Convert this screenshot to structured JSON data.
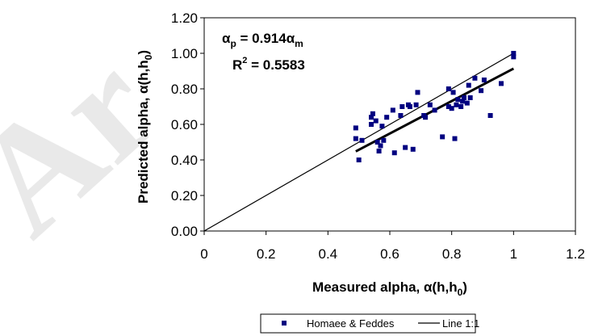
{
  "chart_data": {
    "type": "scatter",
    "xlabel": "Measured alpha, α(h,h",
    "xlabel_sub": "0",
    "xlabel_close": ")",
    "ylabel": "Predicted alpha, α(h,h",
    "ylabel_sub": "0",
    "ylabel_close": ")",
    "xlim": [
      0,
      1.2
    ],
    "ylim": [
      0,
      1.2
    ],
    "x_ticks": [
      0,
      0.2,
      0.4,
      0.6,
      0.8,
      1,
      1.2
    ],
    "x_tick_labels": [
      "0",
      "0.2",
      "0.4",
      "0.6",
      "0.8",
      "1",
      "1.2"
    ],
    "y_ticks": [
      0,
      0.2,
      0.4,
      0.6,
      0.8,
      1.0,
      1.2
    ],
    "y_tick_labels": [
      "0.00",
      "0.20",
      "0.40",
      "0.60",
      "0.80",
      "1.00",
      "1.20"
    ],
    "grid": false,
    "legend_position": "bottom",
    "equation": {
      "alpha": "α",
      "sub_p": "p",
      "middle": " = 0.914α",
      "sub_m": "m",
      "r_prefix": "R",
      "r_sup": "2",
      "r_suffix": " = 0.5583"
    },
    "series": [
      {
        "name": "Homaee & Feddes",
        "marker": "square",
        "color": "#000080",
        "points": [
          [
            0.49,
            0.58
          ],
          [
            0.49,
            0.52
          ],
          [
            0.5,
            0.4
          ],
          [
            0.51,
            0.51
          ],
          [
            0.54,
            0.6
          ],
          [
            0.54,
            0.64
          ],
          [
            0.545,
            0.66
          ],
          [
            0.555,
            0.62
          ],
          [
            0.56,
            0.5
          ],
          [
            0.565,
            0.45
          ],
          [
            0.57,
            0.48
          ],
          [
            0.575,
            0.59
          ],
          [
            0.58,
            0.51
          ],
          [
            0.59,
            0.64
          ],
          [
            0.61,
            0.68
          ],
          [
            0.615,
            0.44
          ],
          [
            0.635,
            0.65
          ],
          [
            0.64,
            0.7
          ],
          [
            0.65,
            0.47
          ],
          [
            0.66,
            0.71
          ],
          [
            0.665,
            0.7
          ],
          [
            0.675,
            0.46
          ],
          [
            0.685,
            0.71
          ],
          [
            0.69,
            0.78
          ],
          [
            0.71,
            0.65
          ],
          [
            0.715,
            0.64
          ],
          [
            0.73,
            0.71
          ],
          [
            0.745,
            0.68
          ],
          [
            0.77,
            0.53
          ],
          [
            0.79,
            0.7
          ],
          [
            0.79,
            0.8
          ],
          [
            0.8,
            0.69
          ],
          [
            0.805,
            0.78
          ],
          [
            0.81,
            0.52
          ],
          [
            0.815,
            0.71
          ],
          [
            0.82,
            0.74
          ],
          [
            0.83,
            0.7
          ],
          [
            0.835,
            0.73
          ],
          [
            0.84,
            0.75
          ],
          [
            0.85,
            0.72
          ],
          [
            0.855,
            0.82
          ],
          [
            0.86,
            0.75
          ],
          [
            0.875,
            0.86
          ],
          [
            0.895,
            0.79
          ],
          [
            0.905,
            0.85
          ],
          [
            0.925,
            0.65
          ],
          [
            0.96,
            0.83
          ],
          [
            1.0,
            0.98
          ],
          [
            1.0,
            1.0
          ]
        ]
      },
      {
        "name": "Line 1:1",
        "type": "line",
        "color": "#000000",
        "points": [
          [
            0,
            0
          ],
          [
            1,
            1
          ]
        ]
      }
    ],
    "trendline": {
      "slope": 0.914,
      "x_range": [
        0.49,
        1.0
      ],
      "color": "#000000"
    }
  },
  "watermark": {
    "text": "Ar",
    "color": "#d8d8d8"
  }
}
